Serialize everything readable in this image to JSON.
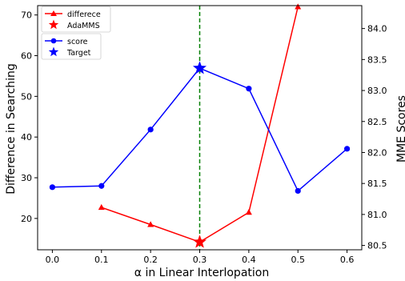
{
  "chart_data": {
    "type": "line",
    "xlabel": "α in Linear Interlopation",
    "ylabel_left": "Difference in Searching",
    "ylabel_right": "MME Scores",
    "xlim": [
      -0.03,
      0.63
    ],
    "ylim_left": [
      12.3,
      72.3
    ],
    "ylim_right": [
      80.43,
      84.37
    ],
    "x_ticks": [
      "0.0",
      "0.1",
      "0.2",
      "0.3",
      "0.4",
      "0.5",
      "0.6"
    ],
    "y_ticks_left": [
      "20",
      "30",
      "40",
      "50",
      "60",
      "70"
    ],
    "y_ticks_right": [
      "80.5",
      "81.0",
      "81.5",
      "82.0",
      "82.5",
      "83.0",
      "83.5",
      "84.0"
    ],
    "vline": {
      "x": 0.3,
      "color": "#008000"
    },
    "series": [
      {
        "name": "differece",
        "axis": "left",
        "color": "#ff0000",
        "marker": "triangle",
        "x": [
          0.1,
          0.2,
          0.3,
          0.4,
          0.5
        ],
        "values": [
          22.7,
          18.5,
          14.2,
          21.5,
          72.0
        ]
      },
      {
        "name": "score",
        "axis": "right",
        "color": "#0000ff",
        "marker": "circle",
        "x": [
          0.0,
          0.1,
          0.2,
          0.3,
          0.4,
          0.5,
          0.6
        ],
        "values": [
          81.44,
          81.46,
          82.37,
          83.36,
          83.03,
          81.38,
          82.06
        ]
      }
    ],
    "highlights": [
      {
        "name": "AdaMMS",
        "axis": "left",
        "x": 0.3,
        "value": 14.2,
        "color": "#ff0000",
        "marker": "star"
      },
      {
        "name": "Target",
        "axis": "right",
        "x": 0.3,
        "value": 83.36,
        "color": "#0000ff",
        "marker": "star"
      }
    ],
    "legends": [
      {
        "placement": "top-left",
        "entries": [
          "differece",
          "AdaMMS"
        ]
      },
      {
        "placement": "top-left",
        "entries": [
          "score",
          "Target"
        ]
      }
    ],
    "grid": false
  }
}
